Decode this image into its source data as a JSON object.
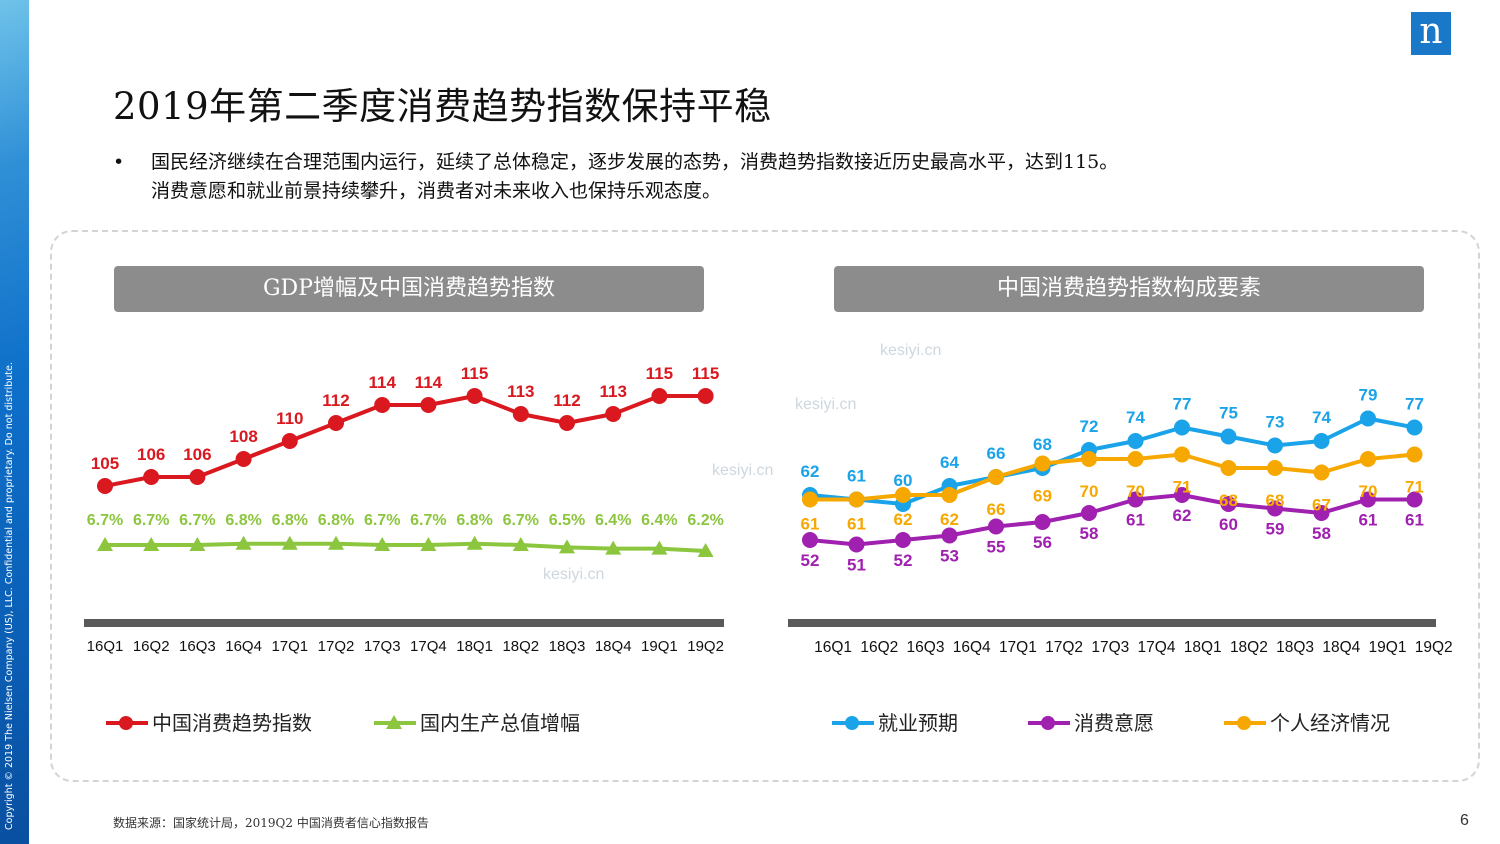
{
  "sidebar": {
    "copyright": "Copyright © 2019 The Nielsen Company (US), LLC. Confidential and proprietary. Do not distribute."
  },
  "logo": {
    "letter": "n"
  },
  "title": "2019年第二季度消费趋势指数保持平稳",
  "bullet": {
    "marker": "•",
    "line1": "国民经济继续在合理范围内运行，延续了总体稳定，逐步发展的态势，消费趋势指数接近历史最高水平，达到115。",
    "line2": "消费意愿和就业前景持续攀升，消费者对未来收入也保持乐观态度。"
  },
  "watermarks": [
    "kesiyi.cn",
    "kesiyi.cn",
    "kesiyi.cn",
    "kesiyi.cn"
  ],
  "source": "数据来源：国家统计局，2019Q2 中国消费者信心指数报告",
  "page_number": "6",
  "colors": {
    "red": "#d9181f",
    "green": "#8cc63f",
    "blue": "#1aa3e8",
    "purple": "#a020b0",
    "orange": "#f7a800",
    "header_bg": "#8c8c8c",
    "axis": "#5a5a5a"
  },
  "chart_data": [
    {
      "type": "line",
      "title": "GDP增幅及中国消费趋势指数",
      "categories": [
        "16Q1",
        "16Q2",
        "16Q3",
        "16Q4",
        "17Q1",
        "17Q2",
        "17Q3",
        "17Q4",
        "18Q1",
        "18Q2",
        "18Q3",
        "18Q4",
        "19Q1",
        "19Q2"
      ],
      "series": [
        {
          "name": "中国消费趋势指数",
          "color": "#d9181f",
          "marker": "circle",
          "values": [
            105,
            106,
            106,
            108,
            110,
            112,
            114,
            114,
            115,
            113,
            112,
            113,
            115,
            115
          ],
          "labels": [
            "105",
            "106",
            "106",
            "108",
            "110",
            "112",
            "114",
            "114",
            "115",
            "113",
            "112",
            "113",
            "115",
            "115"
          ]
        },
        {
          "name": "国内生产总值增幅",
          "color": "#8cc63f",
          "marker": "triangle",
          "values": [
            6.7,
            6.7,
            6.7,
            6.8,
            6.8,
            6.8,
            6.7,
            6.7,
            6.8,
            6.7,
            6.5,
            6.4,
            6.4,
            6.2
          ],
          "labels": [
            "6.7%",
            "6.7%",
            "6.7%",
            "6.8%",
            "6.8%",
            "6.8%",
            "6.7%",
            "6.7%",
            "6.8%",
            "6.7%",
            "6.5%",
            "6.4%",
            "6.4%",
            "6.2%"
          ]
        }
      ],
      "legend": "bottom"
    },
    {
      "type": "line",
      "title": "中国消费趋势指数构成要素",
      "categories": [
        "16Q1",
        "16Q2",
        "16Q3",
        "16Q4",
        "17Q1",
        "17Q2",
        "17Q3",
        "17Q4",
        "18Q1",
        "18Q2",
        "18Q3",
        "18Q4",
        "19Q1",
        "19Q2"
      ],
      "series": [
        {
          "name": "就业预期",
          "color": "#1aa3e8",
          "marker": "circle",
          "values": [
            62,
            61,
            60,
            64,
            66,
            68,
            72,
            74,
            77,
            75,
            73,
            74,
            79,
            77
          ],
          "labels": [
            "62",
            "61",
            "60",
            "64",
            "66",
            "68",
            "72",
            "74",
            "77",
            "75",
            "73",
            "74",
            "79",
            "77"
          ]
        },
        {
          "name": "消费意愿",
          "color": "#a020b0",
          "marker": "circle",
          "values": [
            52,
            51,
            52,
            53,
            55,
            56,
            58,
            61,
            62,
            60,
            59,
            58,
            61,
            61
          ],
          "labels": [
            "52",
            "51",
            "52",
            "53",
            "55",
            "56",
            "58",
            "61",
            "62",
            "60",
            "59",
            "58",
            "61",
            "61"
          ]
        },
        {
          "name": "个人经济情况",
          "color": "#f7a800",
          "marker": "circle",
          "values": [
            61,
            61,
            62,
            62,
            66,
            69,
            70,
            70,
            71,
            68,
            68,
            67,
            70,
            71
          ],
          "labels": [
            "61",
            "61",
            "62",
            "62",
            "66",
            "69",
            "70",
            "70",
            "71",
            "68",
            "68",
            "67",
            "70",
            "71"
          ]
        }
      ],
      "legend": "bottom"
    }
  ]
}
